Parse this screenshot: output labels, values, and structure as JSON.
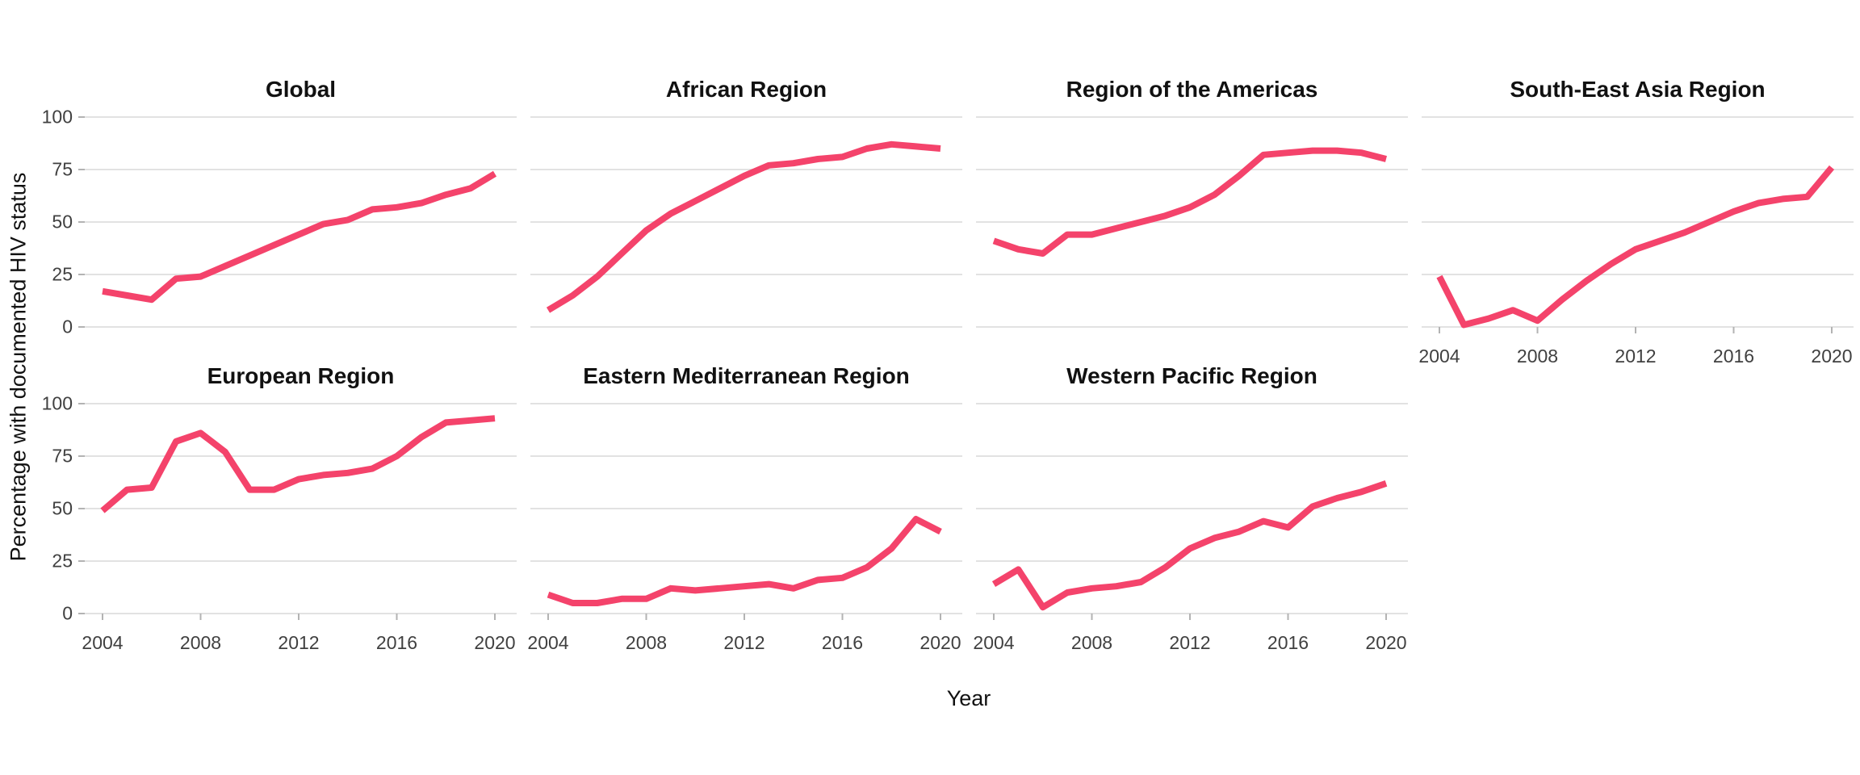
{
  "figure": {
    "y_axis_title": "Percentage with documented HIV status",
    "x_axis_title": "Year",
    "y_ticks": [
      "100",
      "75",
      "50",
      "25",
      "0"
    ],
    "x_ticks": [
      "2004",
      "2008",
      "2012",
      "2016",
      "2020"
    ],
    "line_color": "#F4436B",
    "grid_color": "#E2E2E2",
    "tick_color": "#B3B3B3"
  },
  "chart_data": {
    "type": "line",
    "title": "",
    "xlabel": "Year",
    "ylabel": "Percentage with documented HIV status",
    "x": [
      2004,
      2005,
      2006,
      2007,
      2008,
      2009,
      2010,
      2011,
      2012,
      2013,
      2014,
      2015,
      2016,
      2017,
      2018,
      2019,
      2020
    ],
    "xlim": [
      2004,
      2020
    ],
    "ylim": [
      0,
      100
    ],
    "y_tick_values": [
      0,
      25,
      50,
      75,
      100
    ],
    "x_tick_values": [
      2004,
      2008,
      2012,
      2016,
      2020
    ],
    "grid": "horizontal",
    "legend": "none",
    "facet_layout": "4 columns x 2 rows, 7 panels",
    "series": [
      {
        "name": "Global",
        "values": [
          17,
          15,
          13,
          23,
          24,
          29,
          34,
          39,
          44,
          49,
          51,
          56,
          57,
          59,
          63,
          66,
          73
        ]
      },
      {
        "name": "African Region",
        "values": [
          8,
          15,
          24,
          35,
          46,
          54,
          60,
          66,
          72,
          77,
          78,
          80,
          81,
          85,
          87,
          86,
          85
        ]
      },
      {
        "name": "Region of the Americas",
        "values": [
          41,
          37,
          35,
          44,
          44,
          47,
          50,
          53,
          57,
          63,
          72,
          82,
          83,
          84,
          84,
          83,
          80
        ]
      },
      {
        "name": "South-East Asia Region",
        "values": [
          24,
          1,
          4,
          8,
          3,
          13,
          22,
          30,
          37,
          41,
          45,
          50,
          55,
          59,
          61,
          62,
          76
        ]
      },
      {
        "name": "European Region",
        "values": [
          49,
          59,
          60,
          82,
          86,
          77,
          59,
          59,
          64,
          66,
          67,
          69,
          75,
          84,
          91,
          92,
          93
        ]
      },
      {
        "name": "Eastern Mediterranean Region",
        "values": [
          9,
          5,
          5,
          7,
          7,
          12,
          11,
          12,
          13,
          14,
          12,
          16,
          17,
          22,
          31,
          45,
          39
        ]
      },
      {
        "name": "Western Pacific Region",
        "values": [
          14,
          21,
          3,
          10,
          12,
          13,
          15,
          22,
          31,
          36,
          39,
          44,
          41,
          51,
          55,
          58,
          62
        ]
      }
    ]
  }
}
